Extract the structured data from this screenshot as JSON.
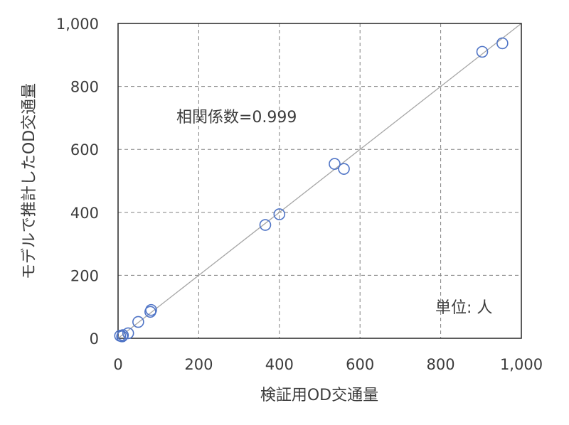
{
  "chart_data": {
    "type": "scatter",
    "title": "",
    "xlabel": "検証用OD交通量",
    "ylabel": "モデルで推計したOD交通量",
    "xlim": [
      0,
      1000
    ],
    "ylim": [
      0,
      1000
    ],
    "xticks": [
      "0",
      "200",
      "400",
      "600",
      "800",
      "1,000"
    ],
    "yticks": [
      "0",
      "200",
      "400",
      "600",
      "800",
      "1,000"
    ],
    "grid": true,
    "annotations": {
      "correlation": "相関係数=0.999",
      "unit": "単位: 人"
    },
    "reference_line": {
      "from": [
        0,
        0
      ],
      "to": [
        1000,
        1000
      ]
    },
    "series": [
      {
        "marker": "open-circle",
        "color": "#4f74c6",
        "points": [
          {
            "x": 5,
            "y": 8
          },
          {
            "x": 10,
            "y": 6
          },
          {
            "x": 12,
            "y": 10
          },
          {
            "x": 25,
            "y": 16
          },
          {
            "x": 50,
            "y": 52
          },
          {
            "x": 80,
            "y": 84
          },
          {
            "x": 82,
            "y": 90
          },
          {
            "x": 365,
            "y": 360
          },
          {
            "x": 400,
            "y": 394
          },
          {
            "x": 537,
            "y": 554
          },
          {
            "x": 560,
            "y": 538
          },
          {
            "x": 903,
            "y": 910
          },
          {
            "x": 953,
            "y": 937
          }
        ]
      }
    ]
  }
}
